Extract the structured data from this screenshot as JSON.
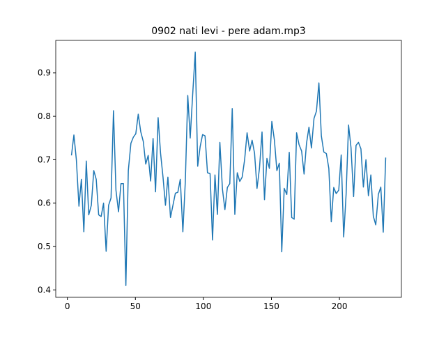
{
  "chart_data": {
    "type": "line",
    "title": "0902 nati levi - pere adam.mp3",
    "x": [
      3.0,
      4.8,
      6.6,
      8.5,
      10.3,
      12.1,
      13.9,
      15.7,
      17.6,
      19.4,
      21.2,
      23.0,
      24.8,
      26.6,
      28.5,
      30.3,
      32.1,
      33.9,
      35.7,
      37.6,
      39.4,
      41.2,
      43.0,
      44.8,
      46.7,
      48.5,
      50.3,
      52.1,
      53.9,
      55.8,
      57.6,
      59.4,
      61.2,
      63.0,
      64.8,
      66.7,
      68.5,
      70.3,
      72.1,
      73.9,
      75.8,
      77.6,
      79.4,
      81.2,
      83.0,
      84.9,
      86.7,
      88.5,
      90.3,
      92.1,
      94.0,
      95.8,
      97.6,
      99.4,
      101.2,
      103.0,
      104.9,
      106.7,
      108.5,
      110.3,
      112.1,
      114.0,
      115.8,
      117.6,
      119.4,
      121.2,
      123.1,
      124.9,
      126.7,
      128.5,
      130.3,
      132.1,
      134.0,
      135.8,
      137.6,
      139.4,
      141.2,
      143.1,
      144.9,
      146.7,
      148.5,
      150.3,
      152.2,
      154.0,
      155.8,
      157.6,
      159.4,
      161.3,
      163.1,
      164.9,
      166.7,
      168.5,
      170.3,
      172.2,
      174.0,
      175.8,
      177.6,
      179.4,
      181.3,
      183.1,
      184.9,
      186.7,
      188.5,
      190.4,
      192.2,
      194.0,
      195.8,
      197.6,
      199.5,
      201.3,
      203.1,
      204.9,
      206.7,
      208.5,
      210.4,
      212.2,
      214.0,
      215.8,
      217.6,
      219.5,
      221.3,
      223.1,
      224.9,
      226.7,
      228.6,
      230.4,
      232.2,
      234.0
    ],
    "series": [
      {
        "color": "#1f77b4",
        "values": [
          0.71,
          0.757,
          0.7,
          0.593,
          0.655,
          0.534,
          0.697,
          0.573,
          0.595,
          0.675,
          0.655,
          0.573,
          0.569,
          0.6,
          0.489,
          0.595,
          0.612,
          0.813,
          0.63,
          0.58,
          0.645,
          0.645,
          0.41,
          0.675,
          0.738,
          0.752,
          0.76,
          0.805,
          0.765,
          0.742,
          0.69,
          0.71,
          0.651,
          0.749,
          0.626,
          0.797,
          0.715,
          0.66,
          0.595,
          0.66,
          0.567,
          0.595,
          0.623,
          0.625,
          0.655,
          0.534,
          0.65,
          0.848,
          0.75,
          0.85,
          0.948,
          0.685,
          0.73,
          0.758,
          0.755,
          0.67,
          0.668,
          0.515,
          0.665,
          0.574,
          0.74,
          0.632,
          0.585,
          0.636,
          0.645,
          0.818,
          0.574,
          0.67,
          0.65,
          0.66,
          0.7,
          0.762,
          0.72,
          0.745,
          0.715,
          0.634,
          0.68,
          0.764,
          0.608,
          0.703,
          0.68,
          0.788,
          0.745,
          0.675,
          0.692,
          0.488,
          0.634,
          0.62,
          0.717,
          0.567,
          0.563,
          0.762,
          0.735,
          0.72,
          0.667,
          0.738,
          0.775,
          0.727,
          0.795,
          0.812,
          0.877,
          0.755,
          0.718,
          0.714,
          0.68,
          0.557,
          0.636,
          0.622,
          0.63,
          0.711,
          0.522,
          0.62,
          0.78,
          0.728,
          0.615,
          0.733,
          0.74,
          0.725,
          0.637,
          0.7,
          0.617,
          0.665,
          0.57,
          0.55,
          0.62,
          0.637,
          0.533,
          0.705
        ]
      }
    ],
    "xlim": [
      -8.55,
      245.55
    ],
    "ylim": [
      0.383,
      0.975
    ],
    "xticks": [
      0,
      50,
      100,
      150,
      200
    ],
    "yticks": [
      0.4,
      0.5,
      0.6,
      0.7,
      0.8,
      0.9
    ]
  }
}
